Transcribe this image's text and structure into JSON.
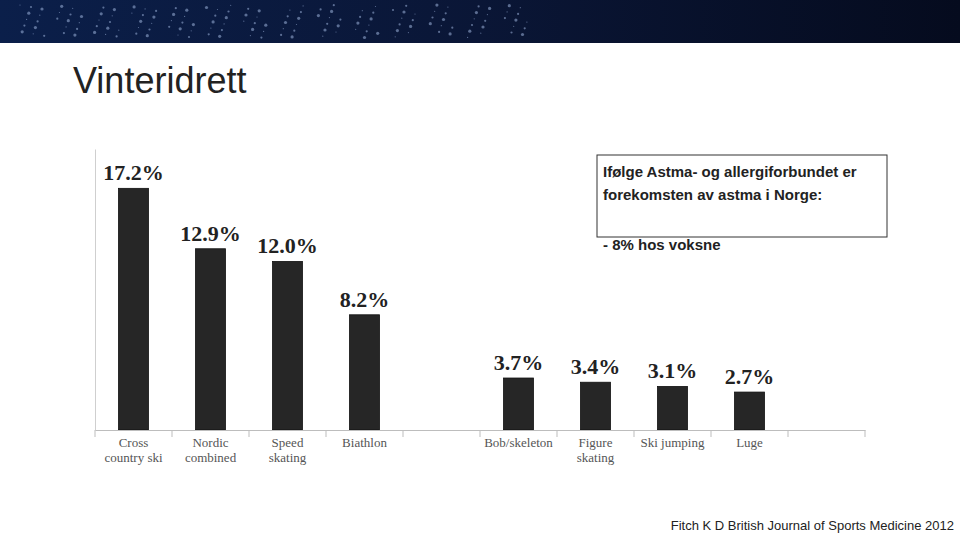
{
  "chart_data": {
    "type": "bar",
    "title": "Vinteridrett",
    "categories": [
      "Cross country ski",
      "Nordic combined",
      "Speed skating",
      "Biathlon",
      null,
      "Bob/skeleton",
      "Figure skating",
      "Ski jumping",
      "Luge",
      null
    ],
    "values": [
      17.2,
      12.9,
      12.0,
      8.2,
      null,
      3.7,
      3.4,
      3.1,
      2.7,
      null
    ],
    "value_labels": [
      "17.2%",
      "12.9%",
      "12.0%",
      "8.2%",
      null,
      "3.7%",
      "3.4%",
      "3.1%",
      "2.7%",
      null
    ],
    "color": "#262626",
    "ylim": [
      0,
      20
    ],
    "yticks": [],
    "data_labels": true,
    "tick_labels": "x",
    "grid": false,
    "annotations": [
      "Ifølge Astma- og allergiforbundet er forekomsten av astma i Norge:",
      "- 8% hos voksne",
      "Fitch K D British Journal of Sports Medicine 2012"
    ]
  }
}
